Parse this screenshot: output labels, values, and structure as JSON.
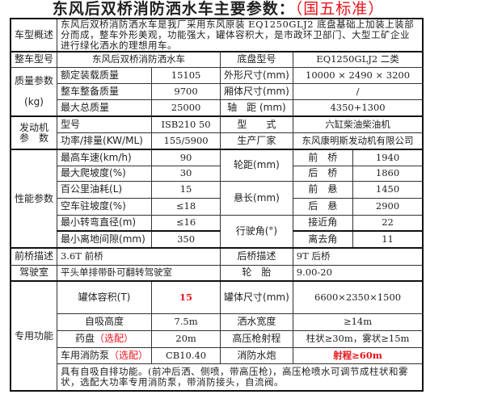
{
  "title": {
    "main": "东风后双桥消防洒水车主要参数：",
    "standard": "（国五标准）"
  },
  "overview": {
    "label": "车型概述",
    "text": "东风后双桥消防洒水车是我厂采用东风原装 EQ1250GLJ2 底盘基础上加装上装部分而成，整车外形美观，功能强大，罐体容积大，是市政环卫部门、大型工矿企业进行绿化洒水的理想用车。"
  },
  "model": {
    "label": "整车型号",
    "value": "东风后双桥消防洒水车",
    "chassis_label": "底盘型号",
    "chassis_value": "EQ1250GLJ2 二类"
  },
  "mass": {
    "label": "质量参数",
    "unit": "(kg)",
    "rows": [
      {
        "k": "额定装载质量",
        "v": "15105",
        "k2": "外形尺寸(mm)",
        "v2": "10000 × 2490 × 3200"
      },
      {
        "k": "整车整备质量",
        "v": "9700",
        "k2": "厢体尺寸(mm)",
        "v2": "/"
      },
      {
        "k": "最大总质量",
        "v": "25000",
        "k2": "轴　距 (mm)",
        "v2": "4350+1300"
      }
    ]
  },
  "engine": {
    "label1": "发动机",
    "label2": "参　数",
    "rows": [
      {
        "k": "型号",
        "v": "ISB210 50",
        "k2": "型　　式",
        "v2": "六缸柴油柴油机"
      },
      {
        "k": "功率/排量(KW/ML)",
        "v": "155/5900",
        "k2": "生产厂家",
        "v2": "东风康明斯发动机有限公司"
      }
    ]
  },
  "performance": {
    "label": "性能参数",
    "groups": [
      "轮距(mm)",
      "悬长(mm)",
      "行驶角(°)"
    ],
    "rows": [
      {
        "k": "最高车速(km/h)",
        "v": "90",
        "k2": "前　桥",
        "v2": "1940"
      },
      {
        "k": "最大爬坡度(%)",
        "v": "30",
        "k2": "后　桥",
        "v2": "1860"
      },
      {
        "k": "百公里油耗(L)",
        "v": "15",
        "k2": "前　悬",
        "v2": "1450"
      },
      {
        "k": "空车驻坡度(%)",
        "v": "≤18",
        "k2": "后　悬",
        "v2": "2900"
      },
      {
        "k": "最小转弯直径(m)",
        "v": "≤16",
        "k2": "接近角",
        "v2": "22"
      },
      {
        "k": "最小离地间隙(mm)",
        "v": "350",
        "k2": "离去角",
        "v2": "11"
      }
    ]
  },
  "axle": {
    "front_label": "前桥描述",
    "front": "3.6T 前桥",
    "rear_label": "后桥描述",
    "rear": "9T 后桥"
  },
  "cab": {
    "label": "驾驶室",
    "value": "平头单排带卧可翻转驾驶室",
    "tire_label": "轮　胎",
    "tire": "9.00-20"
  },
  "special": {
    "label": "专用功能",
    "rows": [
      {
        "k": "罐体容积(T)",
        "v": "15",
        "k2": "罐体尺寸(mm)",
        "v2": "6600×2350×1500"
      },
      {
        "k": "自吸高度",
        "v": "7.5m",
        "k2": "洒水宽度",
        "v2": "≥14m"
      },
      {
        "k": "药盘",
        "opt": "（选配）",
        "v": "20m",
        "k2": "高压枪射程",
        "v2": "柱状≥30m，雾状≥15m"
      },
      {
        "k": "车用消防泵",
        "opt": "（选配）",
        "v": "CB10.40",
        "k2": "消防水炮",
        "v2": "射程≥60m"
      }
    ],
    "note": "具有自吸自排功能。(前冲后洒、侧喷，带高压枪)，高压枪喷水可调节成柱状和雾状，选配大功率专用消防泵，带消防接头，自流阀。"
  },
  "colors": {
    "accent_red": "#e8141b"
  }
}
